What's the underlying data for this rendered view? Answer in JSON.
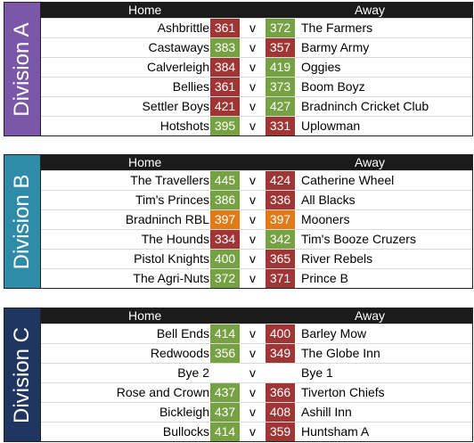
{
  "colors": {
    "win": "#76a244",
    "loss": "#a03535",
    "draw": "#e07b18"
  },
  "header": {
    "home": "Home",
    "away": "Away"
  },
  "divisions": [
    {
      "label": "Division A",
      "color": "#7b57a8",
      "matches": [
        {
          "home": "Ashbrittle",
          "home_score": "361",
          "vs": "v",
          "away_score": "372",
          "away": "The Farmers",
          "home_result": "loss",
          "away_result": "win"
        },
        {
          "home": "Castaways",
          "home_score": "383",
          "vs": "v",
          "away_score": "357",
          "away": "Barmy Army",
          "home_result": "win",
          "away_result": "loss"
        },
        {
          "home": "Calverleigh",
          "home_score": "384",
          "vs": "v",
          "away_score": "419",
          "away": "Oggies",
          "home_result": "loss",
          "away_result": "win"
        },
        {
          "home": "Bellies",
          "home_score": "361",
          "vs": "v",
          "away_score": "373",
          "away": "Boom Boyz",
          "home_result": "loss",
          "away_result": "win"
        },
        {
          "home": "Settler Boys",
          "home_score": "421",
          "vs": "v",
          "away_score": "427",
          "away": "Bradninch Cricket Club",
          "home_result": "loss",
          "away_result": "win"
        },
        {
          "home": "Hotshots",
          "home_score": "395",
          "vs": "v",
          "away_score": "331",
          "away": "Uplowman",
          "home_result": "win",
          "away_result": "loss"
        }
      ]
    },
    {
      "label": "Division B",
      "color": "#2e8ca8",
      "matches": [
        {
          "home": "The Travellers",
          "home_score": "445",
          "vs": "v",
          "away_score": "424",
          "away": "Catherine Wheel",
          "home_result": "win",
          "away_result": "loss"
        },
        {
          "home": "Tim's Princes",
          "home_score": "386",
          "vs": "v",
          "away_score": "336",
          "away": "All Blacks",
          "home_result": "win",
          "away_result": "loss"
        },
        {
          "home": "Bradninch RBL",
          "home_score": "397",
          "vs": "v",
          "away_score": "397",
          "away": "Mooners",
          "home_result": "draw",
          "away_result": "draw"
        },
        {
          "home": "The Hounds",
          "home_score": "334",
          "vs": "v",
          "away_score": "342",
          "away": "Tim's Booze Cruzers",
          "home_result": "loss",
          "away_result": "win"
        },
        {
          "home": "Pistol Knights",
          "home_score": "400",
          "vs": "v",
          "away_score": "365",
          "away": "River Rebels",
          "home_result": "win",
          "away_result": "loss"
        },
        {
          "home": "The Agri-Nuts",
          "home_score": "372",
          "vs": "v",
          "away_score": "371",
          "away": "Prince B",
          "home_result": "win",
          "away_result": "loss"
        }
      ]
    },
    {
      "label": "Division C",
      "color": "#1f3760",
      "matches": [
        {
          "home": "Bell Ends",
          "home_score": "414",
          "vs": "v",
          "away_score": "400",
          "away": "Barley Mow",
          "home_result": "win",
          "away_result": "loss"
        },
        {
          "home": "Redwoods",
          "home_score": "356",
          "vs": "v",
          "away_score": "349",
          "away": "The Globe Inn",
          "home_result": "win",
          "away_result": "loss"
        },
        {
          "home": "Bye 2",
          "home_score": "",
          "vs": "v",
          "away_score": "",
          "away": "Bye 1",
          "home_result": "none",
          "away_result": "none"
        },
        {
          "home": "Rose and Crown",
          "home_score": "437",
          "vs": "v",
          "away_score": "366",
          "away": "Tiverton Chiefs",
          "home_result": "win",
          "away_result": "loss"
        },
        {
          "home": "Bickleigh",
          "home_score": "437",
          "vs": "v",
          "away_score": "408",
          "away": "Ashill Inn",
          "home_result": "win",
          "away_result": "loss"
        },
        {
          "home": "Bullocks",
          "home_score": "414",
          "vs": "v",
          "away_score": "359",
          "away": "Huntsham A",
          "home_result": "win",
          "away_result": "loss"
        }
      ]
    }
  ]
}
